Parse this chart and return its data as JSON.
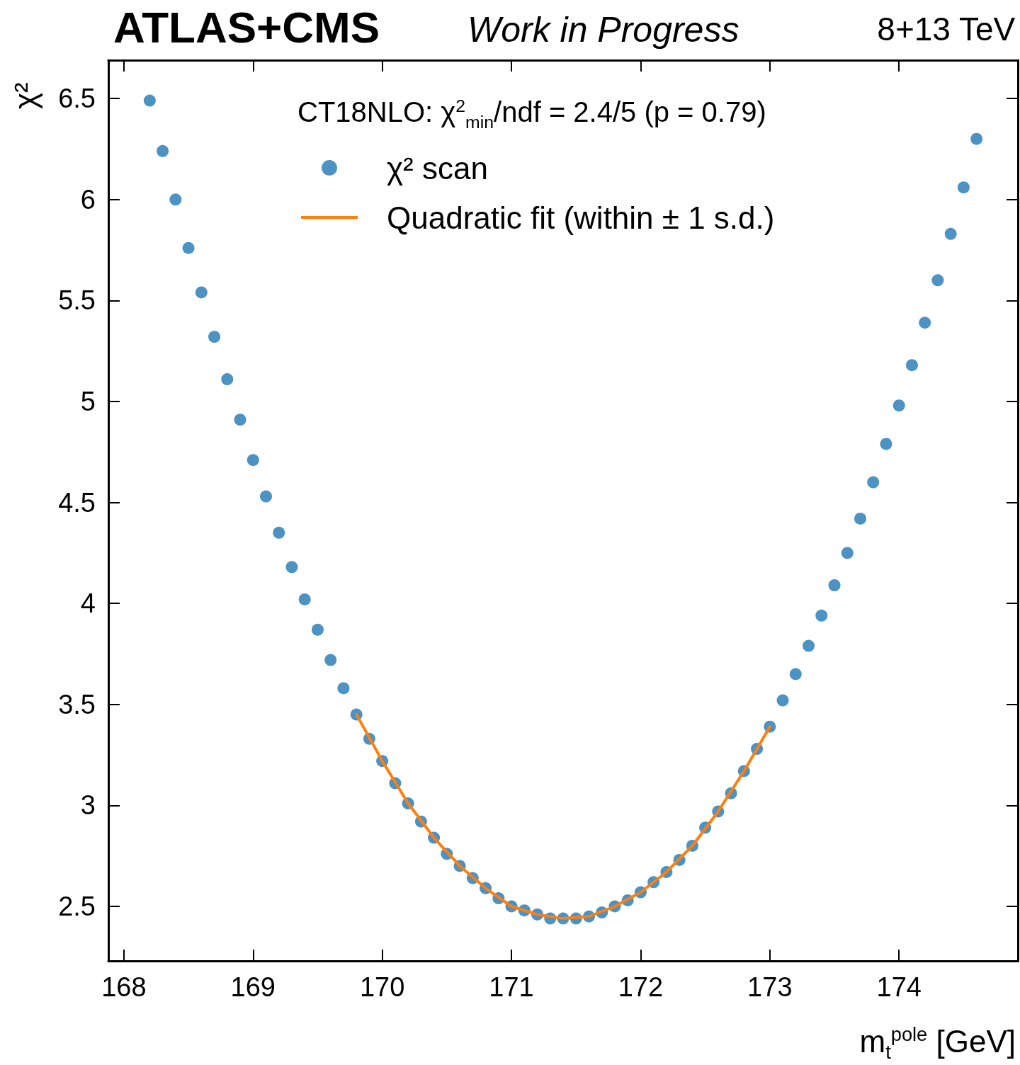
{
  "chart_data": {
    "type": "scatter",
    "title": "ATLAS+CMS",
    "subtitle": "Work in Progress",
    "annotations": [
      "8+13 TeV"
    ],
    "legend_title": "CT18NLO: χ$^{2}$$_{min}$/ndf = 2.4/5 (p = 0.79)",
    "xlabel": "m$_{t}$$^{pole}$ [GeV]",
    "ylabel": "χ²",
    "xlim": [
      167.88,
      174.92
    ],
    "xticks": [
      168,
      169,
      170,
      171,
      172,
      173,
      174
    ],
    "ylim": [
      2.23,
      6.69
    ],
    "yticks": [
      2.5,
      3,
      3.5,
      4,
      4.5,
      5,
      5.5,
      6,
      6.5
    ],
    "grid": false,
    "legend": "top",
    "marker": "circle",
    "series": [
      {
        "name": "χ² scan",
        "color": "#1f77b4",
        "x": [
          168.2,
          168.3,
          168.4,
          168.5,
          168.6,
          168.7,
          168.8,
          168.9,
          169.0,
          169.1,
          169.2,
          169.3,
          169.4,
          169.5,
          169.6,
          169.7,
          169.8,
          169.9,
          170.0,
          170.1,
          170.2,
          170.3,
          170.4,
          170.5,
          170.6,
          170.7,
          170.8,
          170.9,
          171.0,
          171.1,
          171.2,
          171.3,
          171.4,
          171.5,
          171.6,
          171.7,
          171.8,
          171.9,
          172.0,
          172.1,
          172.2,
          172.3,
          172.4,
          172.5,
          172.6,
          172.7,
          172.8,
          172.9,
          173.0,
          173.1,
          173.2,
          173.3,
          173.4,
          173.5,
          173.6,
          173.7,
          173.8,
          173.9,
          174.0,
          174.1,
          174.2,
          174.3,
          174.4,
          174.5,
          174.6
        ],
        "values": [
          6.49,
          6.24,
          6.0,
          5.76,
          5.54,
          5.32,
          5.11,
          4.91,
          4.71,
          4.53,
          4.35,
          4.18,
          4.02,
          3.87,
          3.72,
          3.58,
          3.45,
          3.33,
          3.22,
          3.11,
          3.01,
          2.92,
          2.84,
          2.76,
          2.7,
          2.64,
          2.59,
          2.54,
          2.5,
          2.48,
          2.46,
          2.44,
          2.44,
          2.44,
          2.45,
          2.47,
          2.5,
          2.53,
          2.57,
          2.62,
          2.67,
          2.73,
          2.8,
          2.89,
          2.97,
          3.06,
          3.17,
          3.28,
          3.39,
          3.52,
          3.65,
          3.79,
          3.94,
          4.09,
          4.25,
          4.42,
          4.6,
          4.79,
          4.98,
          5.18,
          5.39,
          5.6,
          5.83,
          6.06,
          6.3
        ]
      },
      {
        "name": "Quadratic fit (within ± 1 s.d.)",
        "type": "line",
        "color": "#ff7f0e",
        "line_style": "solid",
        "marker": "none",
        "x": [
          169.8,
          170.0,
          170.2,
          170.4,
          170.6,
          170.8,
          171.0,
          171.2,
          171.4,
          171.6,
          171.8,
          172.0,
          172.2,
          172.4,
          172.6,
          172.8,
          173.0
        ],
        "values": [
          3.45,
          3.22,
          3.01,
          2.84,
          2.7,
          2.59,
          2.5,
          2.46,
          2.44,
          2.45,
          2.5,
          2.57,
          2.67,
          2.8,
          2.97,
          3.17,
          3.39
        ]
      }
    ]
  }
}
